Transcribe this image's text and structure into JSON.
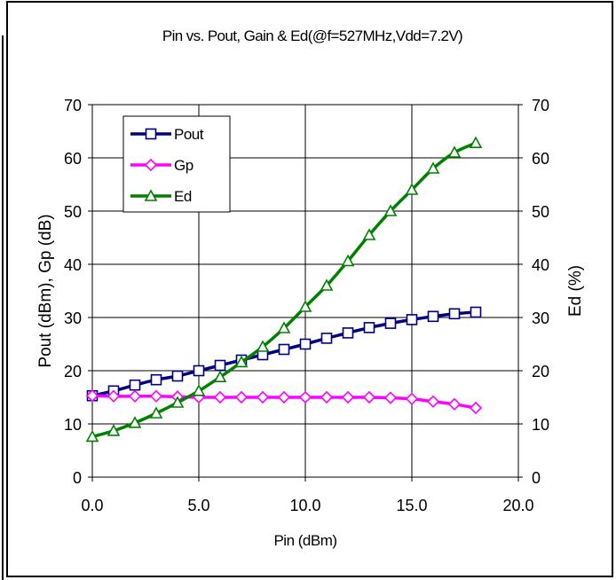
{
  "chart_data": {
    "type": "line",
    "title": "Pin vs. Pout, Gain & Ed(@f=527MHz,Vdd=7.2V)",
    "xlabel": "Pin (dBm)",
    "ylabel": "Pout (dBm), Gp (dB)",
    "y2label": "Ed (%)",
    "xlim": [
      0,
      20
    ],
    "ylim": [
      0,
      70
    ],
    "y2lim": [
      0,
      70
    ],
    "xticks": [
      "0.0",
      "5.0",
      "10.0",
      "15.0",
      "20.0"
    ],
    "xtick_values": [
      0,
      5,
      10,
      15,
      20
    ],
    "yticks": [
      "0",
      "10",
      "20",
      "30",
      "40",
      "50",
      "60",
      "70"
    ],
    "ytick_values": [
      0,
      10,
      20,
      30,
      40,
      50,
      60,
      70
    ],
    "y2ticks": [
      "0",
      "10",
      "20",
      "30",
      "40",
      "50",
      "60",
      "70"
    ],
    "y2tick_values": [
      0,
      10,
      20,
      30,
      40,
      50,
      60,
      70
    ],
    "grid": true,
    "legend_position": "top-left",
    "x": [
      0,
      1,
      2,
      3,
      4,
      5,
      6,
      7,
      8,
      9,
      10,
      11,
      12,
      13,
      14,
      15,
      16,
      17,
      18
    ],
    "series": [
      {
        "name": "Pout",
        "axis": "left",
        "color": "#000080",
        "marker": "square",
        "values": [
          15.3,
          16.2,
          17.3,
          18.3,
          19.0,
          20.0,
          21.0,
          22.0,
          23.0,
          24.0,
          25.0,
          26.1,
          27.1,
          28.1,
          28.9,
          29.6,
          30.2,
          30.7,
          31.0
        ]
      },
      {
        "name": "Gp",
        "axis": "left",
        "color": "#ff00ff",
        "marker": "diamond",
        "values": [
          15.3,
          15.2,
          15.2,
          15.2,
          15.1,
          15.0,
          15.0,
          15.0,
          15.0,
          15.0,
          15.0,
          15.0,
          15.0,
          15.0,
          14.9,
          14.7,
          14.2,
          13.7,
          13.0
        ]
      },
      {
        "name": "Ed",
        "axis": "right",
        "color": "#008000",
        "marker": "triangle",
        "values": [
          7.6,
          8.7,
          10.2,
          12.0,
          14.0,
          16.2,
          18.8,
          21.6,
          24.5,
          28.0,
          32.0,
          36.0,
          40.6,
          45.5,
          50.0,
          54.0,
          58.0,
          61.0,
          62.8
        ]
      }
    ]
  }
}
